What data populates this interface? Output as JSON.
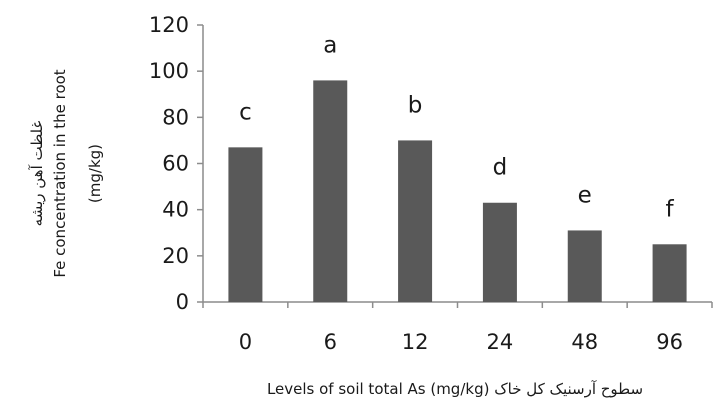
{
  "chart_data": {
    "type": "bar",
    "categories": [
      "0",
      "6",
      "12",
      "24",
      "48",
      "96"
    ],
    "values": [
      67,
      96,
      70,
      43,
      31,
      25
    ],
    "significance_letters": [
      "c",
      "a",
      "b",
      "d",
      "e",
      "f"
    ],
    "ylabel_lines": [
      "غلظت آهن ریشه",
      "Fe concentration in the root",
      "(mg/kg)"
    ],
    "xlabel": "Levels of soil total As (mg/kg) سطوح آرسنیک کل خاک",
    "ylim": [
      0,
      120
    ],
    "yticks": [
      0,
      20,
      40,
      60,
      80,
      100,
      120
    ],
    "grid": false,
    "legend": "none",
    "bar_color": "#595959",
    "axis_color": "#8c8c8c"
  }
}
